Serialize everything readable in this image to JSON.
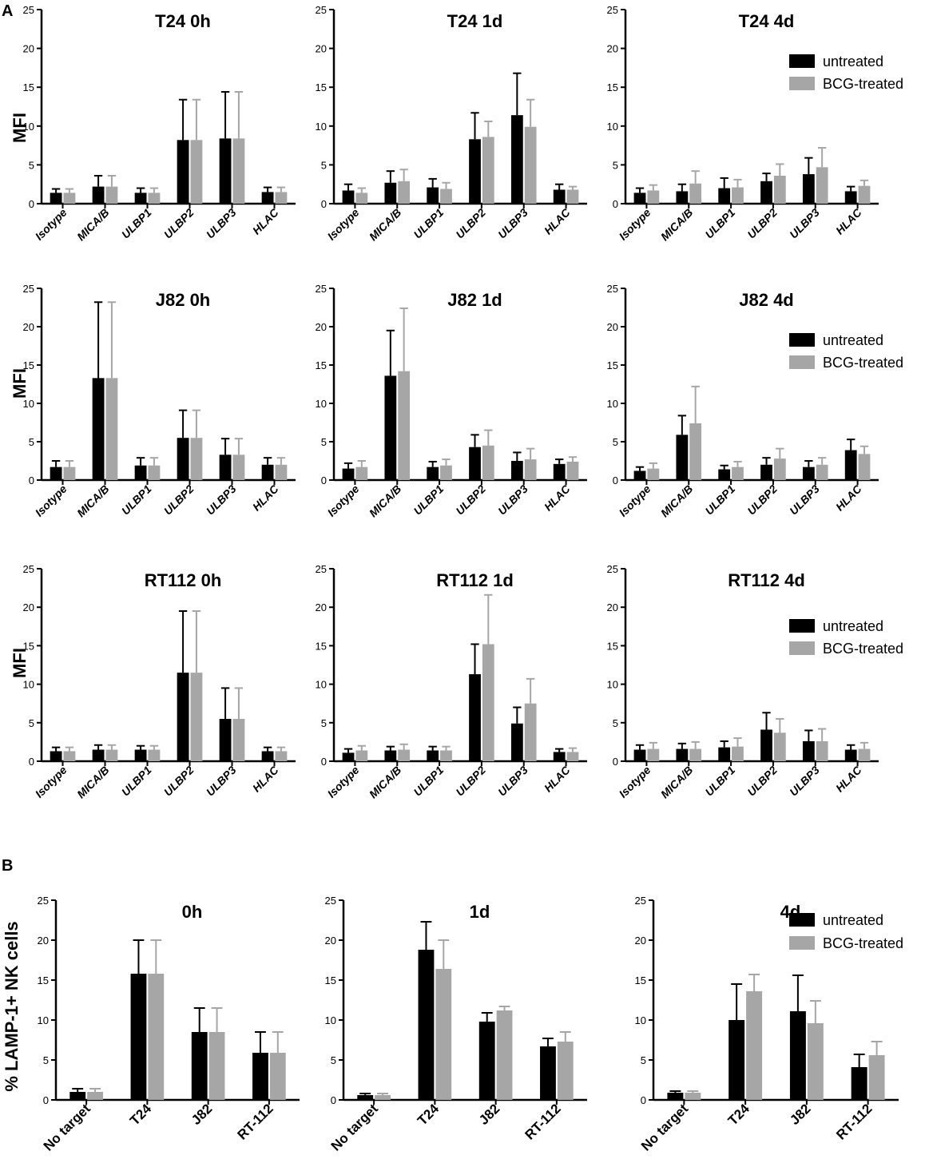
{
  "panel_labels": {
    "a": "A",
    "b": "B"
  },
  "legend": {
    "untreated": "untreated",
    "treated": "BCG-treated"
  },
  "colors": {
    "untreated": "#000000",
    "treated": "#a6a6a6",
    "axis": "#000000"
  },
  "ylabels": {
    "mfi": "MFI",
    "lamp": "% LAMP-1+ NK cells"
  },
  "chart_data": [
    {
      "type": "bar",
      "title": "T24 0h",
      "ylabel": "MFI",
      "ylim": [
        0,
        25
      ],
      "yticks": [
        0,
        5,
        10,
        15,
        20,
        25
      ],
      "categories": [
        "Isotype",
        "MICA/B",
        "ULBP1",
        "ULBP2",
        "ULBP3",
        "HLAC"
      ],
      "series": [
        {
          "name": "untreated",
          "values": [
            1.4,
            2.2,
            1.4,
            8.2,
            8.4,
            1.5
          ],
          "errors": [
            0.5,
            1.4,
            0.6,
            5.2,
            6.0,
            0.6
          ]
        },
        {
          "name": "BCG-treated",
          "values": [
            1.4,
            2.2,
            1.4,
            8.2,
            8.4,
            1.5
          ],
          "errors": [
            0.5,
            1.4,
            0.6,
            5.2,
            6.0,
            0.6
          ]
        }
      ]
    },
    {
      "type": "bar",
      "title": "T24 1d",
      "ylim": [
        0,
        25
      ],
      "yticks": [
        0,
        5,
        10,
        15,
        20,
        25
      ],
      "categories": [
        "Isotype",
        "MICA/B",
        "ULBP1",
        "ULBP2",
        "ULBP3",
        "HLAC"
      ],
      "series": [
        {
          "name": "untreated",
          "values": [
            1.7,
            2.7,
            2.1,
            8.3,
            11.4,
            1.8
          ],
          "errors": [
            0.8,
            1.5,
            1.1,
            3.4,
            5.4,
            0.7
          ]
        },
        {
          "name": "BCG-treated",
          "values": [
            1.4,
            2.9,
            1.9,
            8.6,
            9.9,
            1.8
          ],
          "errors": [
            0.6,
            1.5,
            0.8,
            2.0,
            3.5,
            0.4
          ]
        }
      ]
    },
    {
      "type": "bar",
      "title": "T24 4d",
      "ylim": [
        0,
        25
      ],
      "yticks": [
        0,
        5,
        10,
        15,
        20,
        25
      ],
      "categories": [
        "Isotype",
        "MICA/B",
        "ULBP1",
        "ULBP2",
        "ULBP3",
        "HLAC"
      ],
      "series": [
        {
          "name": "untreated",
          "values": [
            1.4,
            1.6,
            2.0,
            2.9,
            3.8,
            1.6
          ],
          "errors": [
            0.6,
            0.9,
            1.3,
            1.0,
            2.1,
            0.6
          ]
        },
        {
          "name": "BCG-treated",
          "values": [
            1.7,
            2.6,
            2.1,
            3.6,
            4.7,
            2.3
          ],
          "errors": [
            0.7,
            1.6,
            1.0,
            1.5,
            2.5,
            0.7
          ]
        }
      ]
    },
    {
      "type": "bar",
      "title": "J82 0h",
      "ylabel": "MFI",
      "ylim": [
        0,
        25
      ],
      "yticks": [
        0,
        5,
        10,
        15,
        20,
        25
      ],
      "categories": [
        "Isotype",
        "MICA/B",
        "ULBP1",
        "ULBP2",
        "ULBP3",
        "HLAC"
      ],
      "series": [
        {
          "name": "untreated",
          "values": [
            1.7,
            13.3,
            1.9,
            5.5,
            3.3,
            2.0
          ],
          "errors": [
            0.8,
            9.9,
            1.0,
            3.6,
            2.1,
            0.9
          ]
        },
        {
          "name": "BCG-treated",
          "values": [
            1.7,
            13.3,
            1.9,
            5.5,
            3.3,
            2.0
          ],
          "errors": [
            0.8,
            9.9,
            1.0,
            3.6,
            2.1,
            0.9
          ]
        }
      ]
    },
    {
      "type": "bar",
      "title": "J82 1d",
      "ylim": [
        0,
        25
      ],
      "yticks": [
        0,
        5,
        10,
        15,
        20,
        25
      ],
      "categories": [
        "Isotype",
        "MICA/B",
        "ULBP1",
        "ULBP2",
        "ULBP3",
        "HLAC"
      ],
      "series": [
        {
          "name": "untreated",
          "values": [
            1.5,
            13.6,
            1.7,
            4.3,
            2.5,
            2.1
          ],
          "errors": [
            0.7,
            5.9,
            0.7,
            1.6,
            1.1,
            0.6
          ]
        },
        {
          "name": "BCG-treated",
          "values": [
            1.7,
            14.2,
            1.9,
            4.5,
            2.7,
            2.4
          ],
          "errors": [
            0.8,
            8.2,
            0.8,
            2.0,
            1.4,
            0.6
          ]
        }
      ]
    },
    {
      "type": "bar",
      "title": "J82 4d",
      "ylim": [
        0,
        25
      ],
      "yticks": [
        0,
        5,
        10,
        15,
        20,
        25
      ],
      "categories": [
        "Isotype",
        "MICA/B",
        "ULBP1",
        "ULBP2",
        "ULBP3",
        "HLAC"
      ],
      "series": [
        {
          "name": "untreated",
          "values": [
            1.2,
            5.9,
            1.4,
            2.0,
            1.7,
            3.9
          ],
          "errors": [
            0.5,
            2.5,
            0.5,
            0.9,
            0.8,
            1.4
          ]
        },
        {
          "name": "BCG-treated",
          "values": [
            1.5,
            7.4,
            1.7,
            2.8,
            2.0,
            3.4
          ],
          "errors": [
            0.7,
            4.8,
            0.7,
            1.3,
            0.9,
            1.0
          ]
        }
      ]
    },
    {
      "type": "bar",
      "title": "RT112 0h",
      "ylabel": "MFI",
      "ylim": [
        0,
        25
      ],
      "yticks": [
        0,
        5,
        10,
        15,
        20,
        25
      ],
      "categories": [
        "Isotype",
        "MICA/B",
        "ULBP1",
        "ULBP2",
        "ULBP3",
        "HLAC"
      ],
      "series": [
        {
          "name": "untreated",
          "values": [
            1.3,
            1.5,
            1.5,
            11.5,
            5.5,
            1.3
          ],
          "errors": [
            0.5,
            0.6,
            0.5,
            8.0,
            4.0,
            0.5
          ]
        },
        {
          "name": "BCG-treated",
          "values": [
            1.3,
            1.5,
            1.5,
            11.5,
            5.5,
            1.3
          ],
          "errors": [
            0.5,
            0.6,
            0.5,
            8.0,
            4.0,
            0.5
          ]
        }
      ]
    },
    {
      "type": "bar",
      "title": "RT112 1d",
      "ylim": [
        0,
        25
      ],
      "yticks": [
        0,
        5,
        10,
        15,
        20,
        25
      ],
      "categories": [
        "Isotype",
        "MICA/B",
        "ULBP1",
        "ULBP2",
        "ULBP3",
        "HLAC"
      ],
      "series": [
        {
          "name": "untreated",
          "values": [
            1.1,
            1.4,
            1.4,
            11.3,
            4.9,
            1.2
          ],
          "errors": [
            0.5,
            0.5,
            0.5,
            3.9,
            2.1,
            0.4
          ]
        },
        {
          "name": "BCG-treated",
          "values": [
            1.4,
            1.5,
            1.4,
            15.2,
            7.5,
            1.2
          ],
          "errors": [
            0.6,
            0.7,
            0.5,
            6.4,
            3.2,
            0.5
          ]
        }
      ]
    },
    {
      "type": "bar",
      "title": "RT112 4d",
      "ylim": [
        0,
        25
      ],
      "yticks": [
        0,
        5,
        10,
        15,
        20,
        25
      ],
      "categories": [
        "Isotype",
        "MICA/B",
        "ULBP1",
        "ULBP2",
        "ULBP3",
        "HLAC"
      ],
      "series": [
        {
          "name": "untreated",
          "values": [
            1.5,
            1.6,
            1.8,
            4.1,
            2.6,
            1.5
          ],
          "errors": [
            0.6,
            0.7,
            0.8,
            2.2,
            1.4,
            0.6
          ]
        },
        {
          "name": "BCG-treated",
          "values": [
            1.6,
            1.6,
            1.9,
            3.7,
            2.6,
            1.6
          ],
          "errors": [
            0.8,
            0.9,
            1.1,
            1.8,
            1.6,
            0.8
          ]
        }
      ]
    },
    {
      "type": "bar",
      "title": "0h",
      "ylabel": "% LAMP-1+ NK cells",
      "ylim": [
        0,
        25
      ],
      "yticks": [
        0,
        5,
        10,
        15,
        20,
        25
      ],
      "categories": [
        "No target",
        "T24",
        "J82",
        "RT-112"
      ],
      "series": [
        {
          "name": "untreated",
          "values": [
            1.0,
            15.8,
            8.5,
            5.9
          ],
          "errors": [
            0.4,
            4.2,
            3.0,
            2.6
          ]
        },
        {
          "name": "BCG-treated",
          "values": [
            1.0,
            15.8,
            8.5,
            5.9
          ],
          "errors": [
            0.4,
            4.2,
            3.0,
            2.6
          ]
        }
      ]
    },
    {
      "type": "bar",
      "title": "1d",
      "ylim": [
        0,
        25
      ],
      "yticks": [
        0,
        5,
        10,
        15,
        20,
        25
      ],
      "categories": [
        "No target",
        "T24",
        "J82",
        "RT-112"
      ],
      "series": [
        {
          "name": "untreated",
          "values": [
            0.6,
            18.8,
            9.8,
            6.7
          ],
          "errors": [
            0.2,
            3.5,
            1.1,
            1.0
          ]
        },
        {
          "name": "BCG-treated",
          "values": [
            0.6,
            16.4,
            11.2,
            7.3
          ],
          "errors": [
            0.2,
            3.6,
            0.5,
            1.2
          ]
        }
      ]
    },
    {
      "type": "bar",
      "title": "4d",
      "ylim": [
        0,
        25
      ],
      "yticks": [
        0,
        5,
        10,
        15,
        20,
        25
      ],
      "categories": [
        "No target",
        "T24",
        "J82",
        "RT-112"
      ],
      "series": [
        {
          "name": "untreated",
          "values": [
            0.9,
            10.0,
            11.1,
            4.1
          ],
          "errors": [
            0.2,
            4.5,
            4.5,
            1.6
          ]
        },
        {
          "name": "BCG-treated",
          "values": [
            0.9,
            13.6,
            9.6,
            5.6
          ],
          "errors": [
            0.2,
            2.1,
            2.8,
            1.7
          ]
        }
      ]
    }
  ]
}
